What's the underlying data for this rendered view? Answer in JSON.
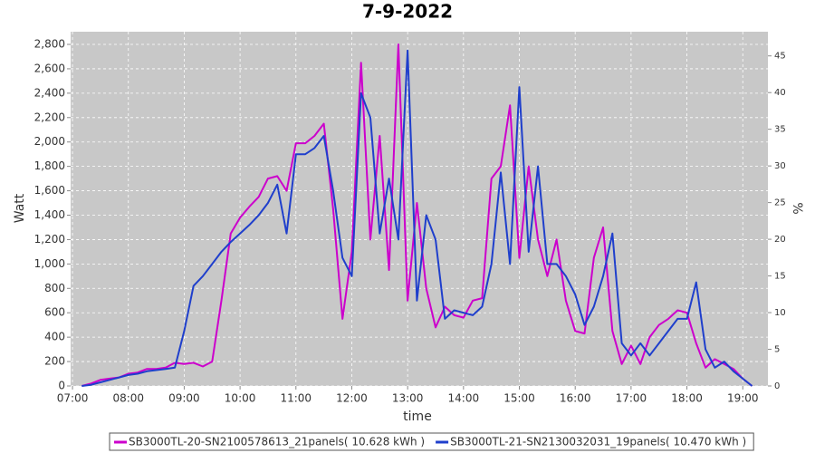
{
  "chart_data": {
    "type": "line",
    "title": "7-9-2022",
    "x_label": "time",
    "y_label": "Watt",
    "y2_label": "%",
    "x": [
      "07:10",
      "07:20",
      "07:30",
      "07:40",
      "07:50",
      "08:00",
      "08:10",
      "08:20",
      "08:30",
      "08:40",
      "08:50",
      "09:00",
      "09:10",
      "09:20",
      "09:30",
      "09:40",
      "09:50",
      "10:00",
      "10:10",
      "10:20",
      "10:30",
      "10:40",
      "10:50",
      "11:00",
      "11:10",
      "11:20",
      "11:30",
      "11:40",
      "11:50",
      "12:00",
      "12:10",
      "12:20",
      "12:30",
      "12:40",
      "12:50",
      "13:00",
      "13:10",
      "13:20",
      "13:30",
      "13:40",
      "13:50",
      "14:00",
      "14:10",
      "14:20",
      "14:30",
      "14:40",
      "14:50",
      "15:00",
      "15:10",
      "15:20",
      "15:30",
      "15:40",
      "15:50",
      "16:00",
      "16:10",
      "16:20",
      "16:30",
      "16:40",
      "16:50",
      "17:00",
      "17:10",
      "17:20",
      "17:30",
      "17:40",
      "17:50",
      "18:00",
      "18:10",
      "18:20",
      "18:30",
      "18:40",
      "18:50",
      "19:00",
      "19:10"
    ],
    "xlim": [
      "06:58",
      "19:27"
    ],
    "xticks": [
      "07:00",
      "08:00",
      "09:00",
      "10:00",
      "11:00",
      "12:00",
      "13:00",
      "14:00",
      "15:00",
      "16:00",
      "17:00",
      "18:00",
      "19:00"
    ],
    "ylim": [
      0,
      2904
    ],
    "yticks": [
      0,
      200,
      400,
      600,
      800,
      {
        "value": 1000,
        "label": "1,000"
      },
      {
        "value": 1200,
        "label": "1,200"
      },
      {
        "value": 1400,
        "label": "1,400"
      },
      {
        "value": 1600,
        "label": "1,600"
      },
      {
        "value": 1800,
        "label": "1,800"
      },
      {
        "value": 2000,
        "label": "2,000"
      },
      {
        "value": 2200,
        "label": "2,200"
      },
      {
        "value": 2400,
        "label": "2,400"
      },
      {
        "value": 2600,
        "label": "2,600"
      },
      {
        "value": 2800,
        "label": "2,800"
      }
    ],
    "y2lim": [
      0,
      48.3
    ],
    "y2ticks": [
      0,
      5,
      10,
      15,
      20,
      25,
      30,
      35,
      40,
      45
    ],
    "grid": true,
    "series": [
      {
        "name": "SB3000TL-20-SN2100578613_21panels( 10.628 kWh )",
        "color": "#cc00cc",
        "values": [
          0,
          20,
          50,
          60,
          70,
          100,
          110,
          140,
          140,
          150,
          190,
          180,
          190,
          160,
          200,
          700,
          1250,
          1380,
          1470,
          1550,
          1700,
          1720,
          1600,
          1990,
          1990,
          2050,
          2150,
          1450,
          550,
          1100,
          2650,
          1200,
          2050,
          950,
          2800,
          700,
          1500,
          800,
          480,
          650,
          580,
          560,
          700,
          720,
          1700,
          1800,
          2300,
          1050,
          1800,
          1200,
          900,
          1200,
          700,
          450,
          430,
          1050,
          1300,
          450,
          180,
          330,
          180,
          400,
          500,
          550,
          620,
          600,
          350,
          150,
          220,
          180,
          140,
          60,
          0
        ]
      },
      {
        "name": "SB3000TL-21-SN2130032031_19panels( 10.470 kWh )",
        "color": "#1f3fcc",
        "values": [
          0,
          10,
          30,
          50,
          70,
          90,
          100,
          120,
          130,
          140,
          150,
          450,
          820,
          900,
          1000,
          1100,
          1180,
          1250,
          1320,
          1400,
          1500,
          1650,
          1250,
          1900,
          1900,
          1950,
          2050,
          1600,
          1050,
          900,
          2400,
          2200,
          1250,
          1700,
          1200,
          2750,
          700,
          1400,
          1200,
          550,
          620,
          600,
          580,
          650,
          1000,
          1750,
          1000,
          2450,
          1100,
          1800,
          1000,
          1000,
          900,
          750,
          500,
          650,
          900,
          1250,
          350,
          250,
          350,
          250,
          350,
          450,
          550,
          550,
          850,
          300,
          150,
          200,
          120,
          60,
          0
        ]
      }
    ]
  }
}
